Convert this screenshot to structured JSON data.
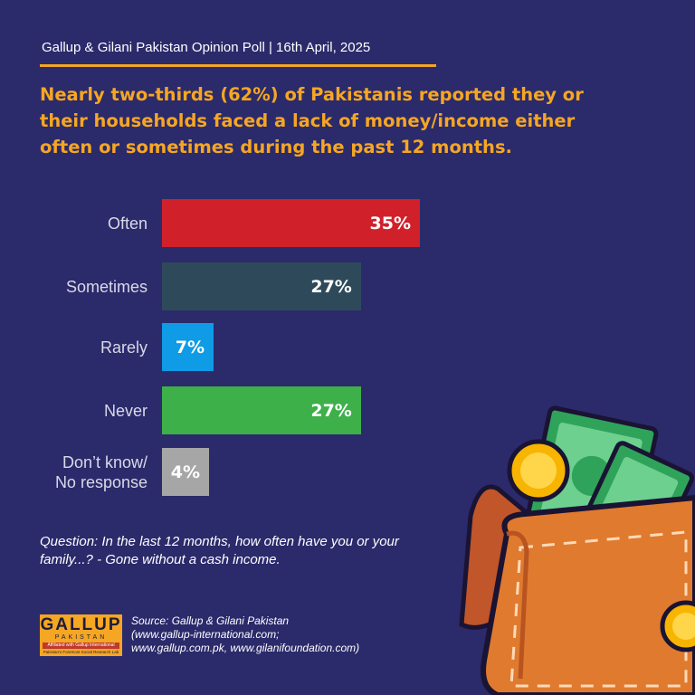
{
  "header": {
    "title": "Gallup & Gilani Pakistan Opinion Poll | 16th April, 2025"
  },
  "headline": {
    "lines": [
      "Nearly two-thirds  (62%) of Pakistanis reported they or",
      "their households faced a lack of money/income either",
      "often or sometimes during the past 12 months."
    ]
  },
  "chart_data": {
    "type": "bar",
    "orientation": "horizontal",
    "categories": [
      "Often",
      "Sometimes",
      "Rarely",
      "Never",
      "Don’t know/ No response"
    ],
    "category_lines": [
      [
        "Often"
      ],
      [
        "Sometimes"
      ],
      [
        "Rarely"
      ],
      [
        "Never"
      ],
      [
        "Don’t know/",
        "No response"
      ]
    ],
    "values": [
      35,
      27,
      7,
      27,
      4
    ],
    "value_labels": [
      "35%",
      "27%",
      "7%",
      "27%",
      "4%"
    ],
    "colors": [
      "#d0212b",
      "#2e4a5a",
      "#0f9be6",
      "#3db049",
      "#a6a6a6"
    ],
    "title": "",
    "xlabel": "",
    "ylabel": "",
    "xlim": [
      0,
      35
    ],
    "grid": false
  },
  "question": {
    "lines": [
      "Question: In the last 12 months, how often have you or your",
      "family...? - Gone without a cash income."
    ]
  },
  "logo": {
    "brand": "GALLUP",
    "country": "PAKISTAN",
    "affiliation": "Affiliated with Gallup International",
    "tagline": "Pakistan's Foremost Social Research Lab"
  },
  "source": {
    "lines": [
      "Source: Gallup & Gilani Pakistan",
      "(www.gallup-international.com;",
      "www.gallup.com.pk, www.gilanifoundation.com)"
    ]
  },
  "illustration": {
    "icon": "wallet-with-money-icon"
  }
}
